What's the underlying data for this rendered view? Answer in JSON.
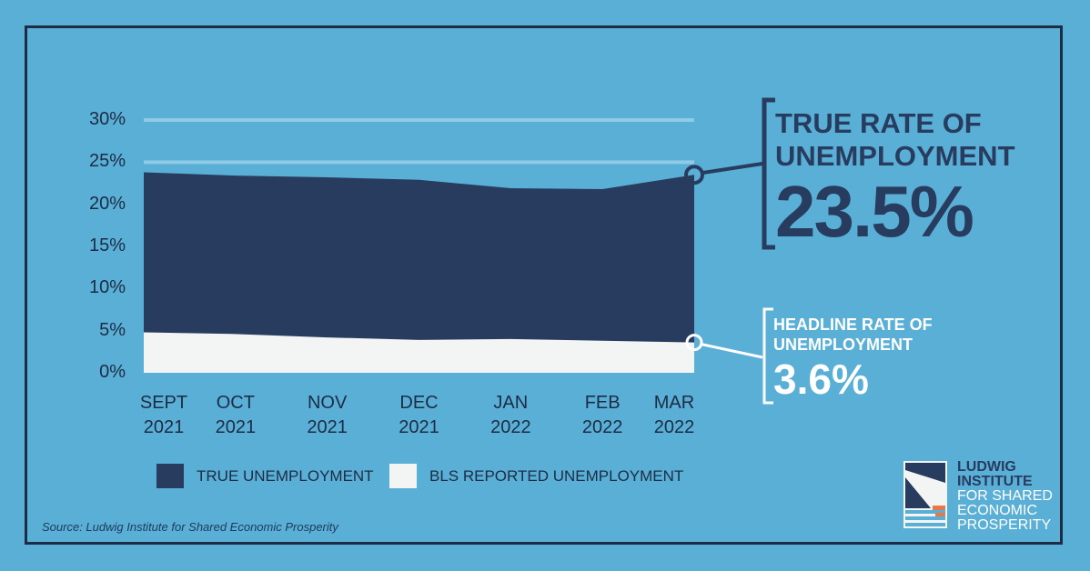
{
  "chart_data": {
    "type": "area",
    "categories": [
      "SEPT 2021",
      "OCT 2021",
      "NOV 2021",
      "DEC 2021",
      "JAN 2022",
      "FEB 2022",
      "MAR 2022"
    ],
    "x_labels": [
      [
        "SEPT",
        "2021"
      ],
      [
        "OCT",
        "2021"
      ],
      [
        "NOV",
        "2021"
      ],
      [
        "DEC",
        "2021"
      ],
      [
        "JAN",
        "2022"
      ],
      [
        "FEB",
        "2022"
      ],
      [
        "MAR",
        "2022"
      ]
    ],
    "series": [
      {
        "name": "TRUE UNEMPLOYMENT",
        "color": "#273c5f",
        "values": [
          23.8,
          23.4,
          23.2,
          22.9,
          21.9,
          21.8,
          23.5
        ]
      },
      {
        "name": "BLS REPORTED UNEMPLOYMENT",
        "color": "#f3f4f4",
        "values": [
          4.8,
          4.6,
          4.2,
          3.9,
          4.0,
          3.8,
          3.6
        ]
      }
    ],
    "ylim": [
      0,
      30
    ],
    "yticks": [
      "0%",
      "5%",
      "10%",
      "15%",
      "20%",
      "25%",
      "30%"
    ],
    "grid": true,
    "legend_placement": "bottom"
  },
  "callouts": {
    "true_rate": {
      "title_line1": "TRUE RATE OF",
      "title_line2": "UNEMPLOYMENT",
      "value": "23.5%"
    },
    "headline_rate": {
      "title_line1": "HEADLINE RATE OF",
      "title_line2": "UNEMPLOYMENT",
      "value": "3.6%"
    }
  },
  "source": "Source: Ludwig Institute for Shared Economic Prosperity",
  "logo": {
    "line1": "LUDWIG",
    "line2": "INSTITUTE",
    "line3": "FOR SHARED",
    "line4": "ECONOMIC",
    "line5": "PROSPERITY"
  },
  "colors": {
    "background": "#5aafd6",
    "navy": "#273c5f",
    "white": "#f3f4f4",
    "gridline": "#8fcbe6",
    "orange": "#e8774a"
  }
}
